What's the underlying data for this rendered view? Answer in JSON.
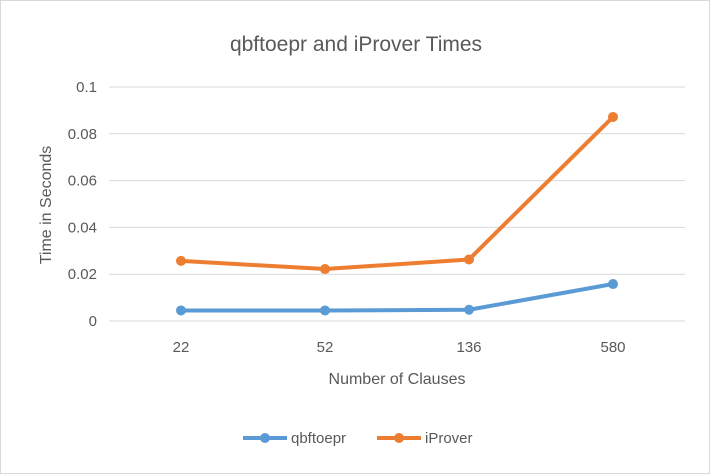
{
  "chart_data": {
    "type": "line",
    "title": "qbftoepr and iProver Times",
    "xlabel": "Number of Clauses",
    "ylabel": "Time in Seconds",
    "categories": [
      "22",
      "52",
      "136",
      "580"
    ],
    "yticks": [
      "0",
      "0.02",
      "0.04",
      "0.06",
      "0.08",
      "0.1"
    ],
    "ylim": [
      0,
      0.1
    ],
    "grid": true,
    "legend_position": "bottom",
    "series": [
      {
        "name": "qbftoepr",
        "color": "#5b9bd5",
        "values": [
          0.0045,
          0.0045,
          0.0048,
          0.0158
        ]
      },
      {
        "name": "iProver",
        "color": "#ed7d31",
        "values": [
          0.0257,
          0.0222,
          0.0263,
          0.0872
        ]
      }
    ]
  }
}
